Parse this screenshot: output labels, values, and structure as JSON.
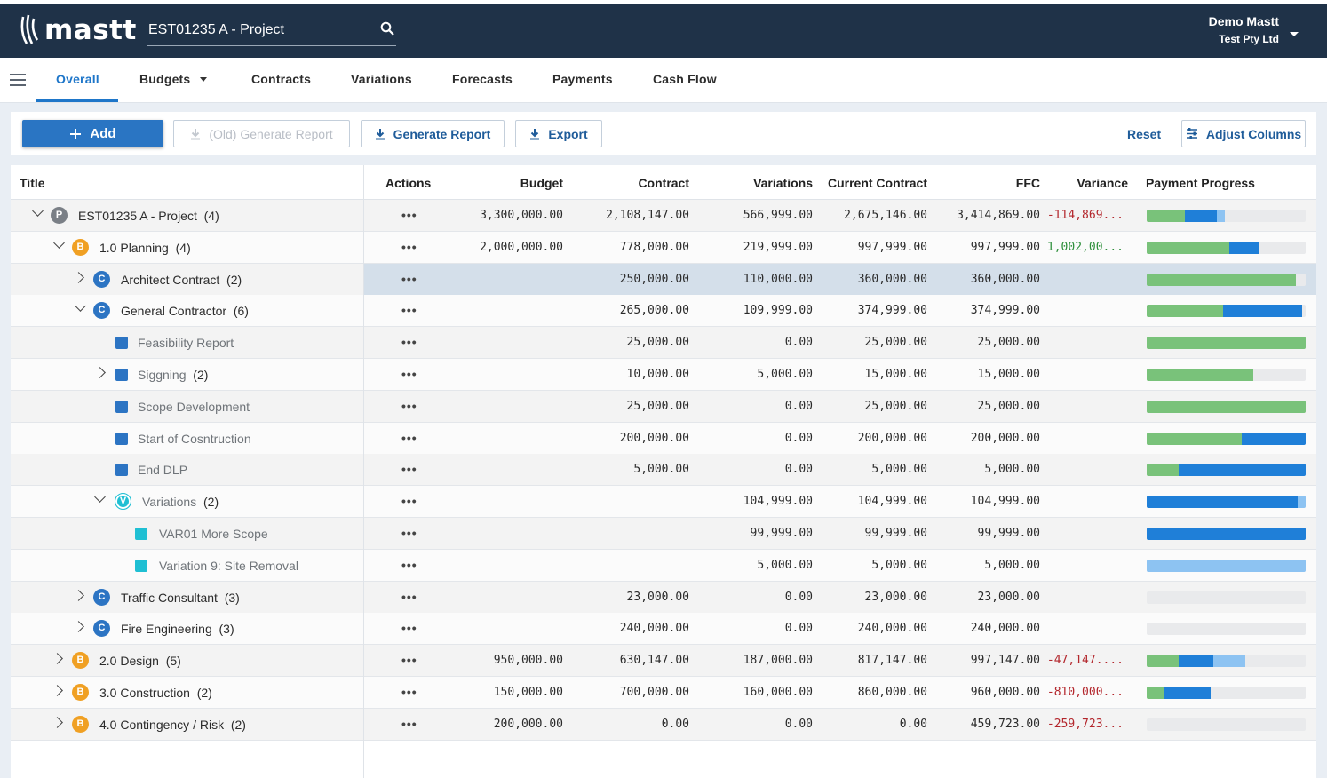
{
  "header": {
    "logo": "mastt",
    "search_value": "EST01235 A - Project",
    "user_name": "Demo Mastt",
    "user_org": "Test Pty Ltd"
  },
  "tabs": [
    "Overall",
    "Budgets",
    "Contracts",
    "Variations",
    "Forecasts",
    "Payments",
    "Cash Flow"
  ],
  "toolbar": {
    "add": "Add",
    "old_report": "(Old) Generate Report",
    "generate_report": "Generate Report",
    "export": "Export",
    "reset": "Reset",
    "adjust_columns": "Adjust Columns"
  },
  "columns": [
    "Title",
    "Actions",
    "Budget",
    "Contract",
    "Variations",
    "Current Contract",
    "FFC",
    "Variance",
    "Payment Progress"
  ],
  "actions_glyph": "•••",
  "colors": {
    "accent": "#1e76c9",
    "header_bg": "#1f3248",
    "paid": "#79c27a",
    "approved": "#1f7fd8",
    "pending": "#8dc3f2",
    "negative": "#b3262c",
    "positive": "#2e8f3b"
  },
  "rows": [
    {
      "title": "EST01235 A - Project",
      "count": "(4)",
      "badge": "P",
      "budget": "3,300,000.00",
      "contract": "2,108,147.00",
      "variations": "566,999.00",
      "current": "2,675,146.00",
      "ffc": "3,414,869.00",
      "variance": "-114,869...",
      "progress": [
        0.24,
        0.2,
        0.05
      ]
    },
    {
      "title": "1.0 Planning",
      "count": "(4)",
      "badge": "B",
      "budget": "2,000,000.00",
      "contract": "778,000.00",
      "variations": "219,999.00",
      "current": "997,999.00",
      "ffc": "997,999.00",
      "variance": "1,002,00...",
      "progress": [
        0.52,
        0.19,
        0
      ]
    },
    {
      "title": "Architect Contract",
      "count": "(2)",
      "badge": "C",
      "budget": "",
      "contract": "250,000.00",
      "variations": "110,000.00",
      "current": "360,000.00",
      "ffc": "360,000.00",
      "variance": "",
      "progress": [
        0.94,
        0,
        0
      ]
    },
    {
      "title": "General Contractor",
      "count": "(6)",
      "badge": "C",
      "budget": "",
      "contract": "265,000.00",
      "variations": "109,999.00",
      "current": "374,999.00",
      "ffc": "374,999.00",
      "variance": "",
      "progress": [
        0.48,
        0.5,
        0
      ]
    },
    {
      "title": "Feasibility Report",
      "count": "",
      "badge": "",
      "budget": "",
      "contract": "25,000.00",
      "variations": "0.00",
      "current": "25,000.00",
      "ffc": "25,000.00",
      "variance": "",
      "progress": [
        1.0,
        0,
        0
      ]
    },
    {
      "title": "Siggning",
      "count": "(2)",
      "badge": "",
      "budget": "",
      "contract": "10,000.00",
      "variations": "5,000.00",
      "current": "15,000.00",
      "ffc": "15,000.00",
      "variance": "",
      "progress": [
        0.67,
        0,
        0
      ]
    },
    {
      "title": "Scope Development",
      "count": "",
      "badge": "",
      "budget": "",
      "contract": "25,000.00",
      "variations": "0.00",
      "current": "25,000.00",
      "ffc": "25,000.00",
      "variance": "",
      "progress": [
        1.0,
        0,
        0
      ]
    },
    {
      "title": "Start of Cosntruction",
      "count": "",
      "badge": "",
      "budget": "",
      "contract": "200,000.00",
      "variations": "0.00",
      "current": "200,000.00",
      "ffc": "200,000.00",
      "variance": "",
      "progress": [
        0.6,
        0.4,
        0
      ]
    },
    {
      "title": "End DLP",
      "count": "",
      "badge": "",
      "budget": "",
      "contract": "5,000.00",
      "variations": "0.00",
      "current": "5,000.00",
      "ffc": "5,000.00",
      "variance": "",
      "progress": [
        0.2,
        0.8,
        0
      ]
    },
    {
      "title": "Variations",
      "count": "(2)",
      "badge": "V",
      "budget": "",
      "contract": "",
      "variations": "104,999.00",
      "current": "104,999.00",
      "ffc": "104,999.00",
      "variance": "",
      "progress": [
        0,
        0.95,
        0.05
      ]
    },
    {
      "title": "VAR01 More Scope",
      "count": "",
      "badge": "",
      "budget": "",
      "contract": "",
      "variations": "99,999.00",
      "current": "99,999.00",
      "ffc": "99,999.00",
      "variance": "",
      "progress": [
        0,
        1.0,
        0
      ]
    },
    {
      "title": "Variation 9: Site Removal",
      "count": "",
      "badge": "",
      "budget": "",
      "contract": "",
      "variations": "5,000.00",
      "current": "5,000.00",
      "ffc": "5,000.00",
      "variance": "",
      "progress": [
        0,
        0,
        1.0
      ]
    },
    {
      "title": "Traffic Consultant",
      "count": "(3)",
      "badge": "C",
      "budget": "",
      "contract": "23,000.00",
      "variations": "0.00",
      "current": "23,000.00",
      "ffc": "23,000.00",
      "variance": "",
      "progress": [
        0,
        0,
        0
      ]
    },
    {
      "title": "Fire Engineering",
      "count": "(3)",
      "badge": "C",
      "budget": "",
      "contract": "240,000.00",
      "variations": "0.00",
      "current": "240,000.00",
      "ffc": "240,000.00",
      "variance": "",
      "progress": [
        0,
        0,
        0
      ]
    },
    {
      "title": "2.0 Design",
      "count": "(5)",
      "badge": "B",
      "budget": "950,000.00",
      "contract": "630,147.00",
      "variations": "187,000.00",
      "current": "817,147.00",
      "ffc": "997,147.00",
      "variance": "-47,147....",
      "progress": [
        0.2,
        0.22,
        0.2
      ]
    },
    {
      "title": "3.0 Construction",
      "count": "(2)",
      "badge": "B",
      "budget": "150,000.00",
      "contract": "700,000.00",
      "variations": "160,000.00",
      "current": "860,000.00",
      "ffc": "960,000.00",
      "variance": "-810,000...",
      "progress": [
        0.11,
        0.29,
        0
      ]
    },
    {
      "title": "4.0 Contingency / Risk",
      "count": "(2)",
      "badge": "B",
      "budget": "200,000.00",
      "contract": "0.00",
      "variations": "0.00",
      "current": "0.00",
      "ffc": "459,723.00",
      "variance": "-259,723...",
      "progress": [
        0,
        0,
        0
      ]
    }
  ]
}
